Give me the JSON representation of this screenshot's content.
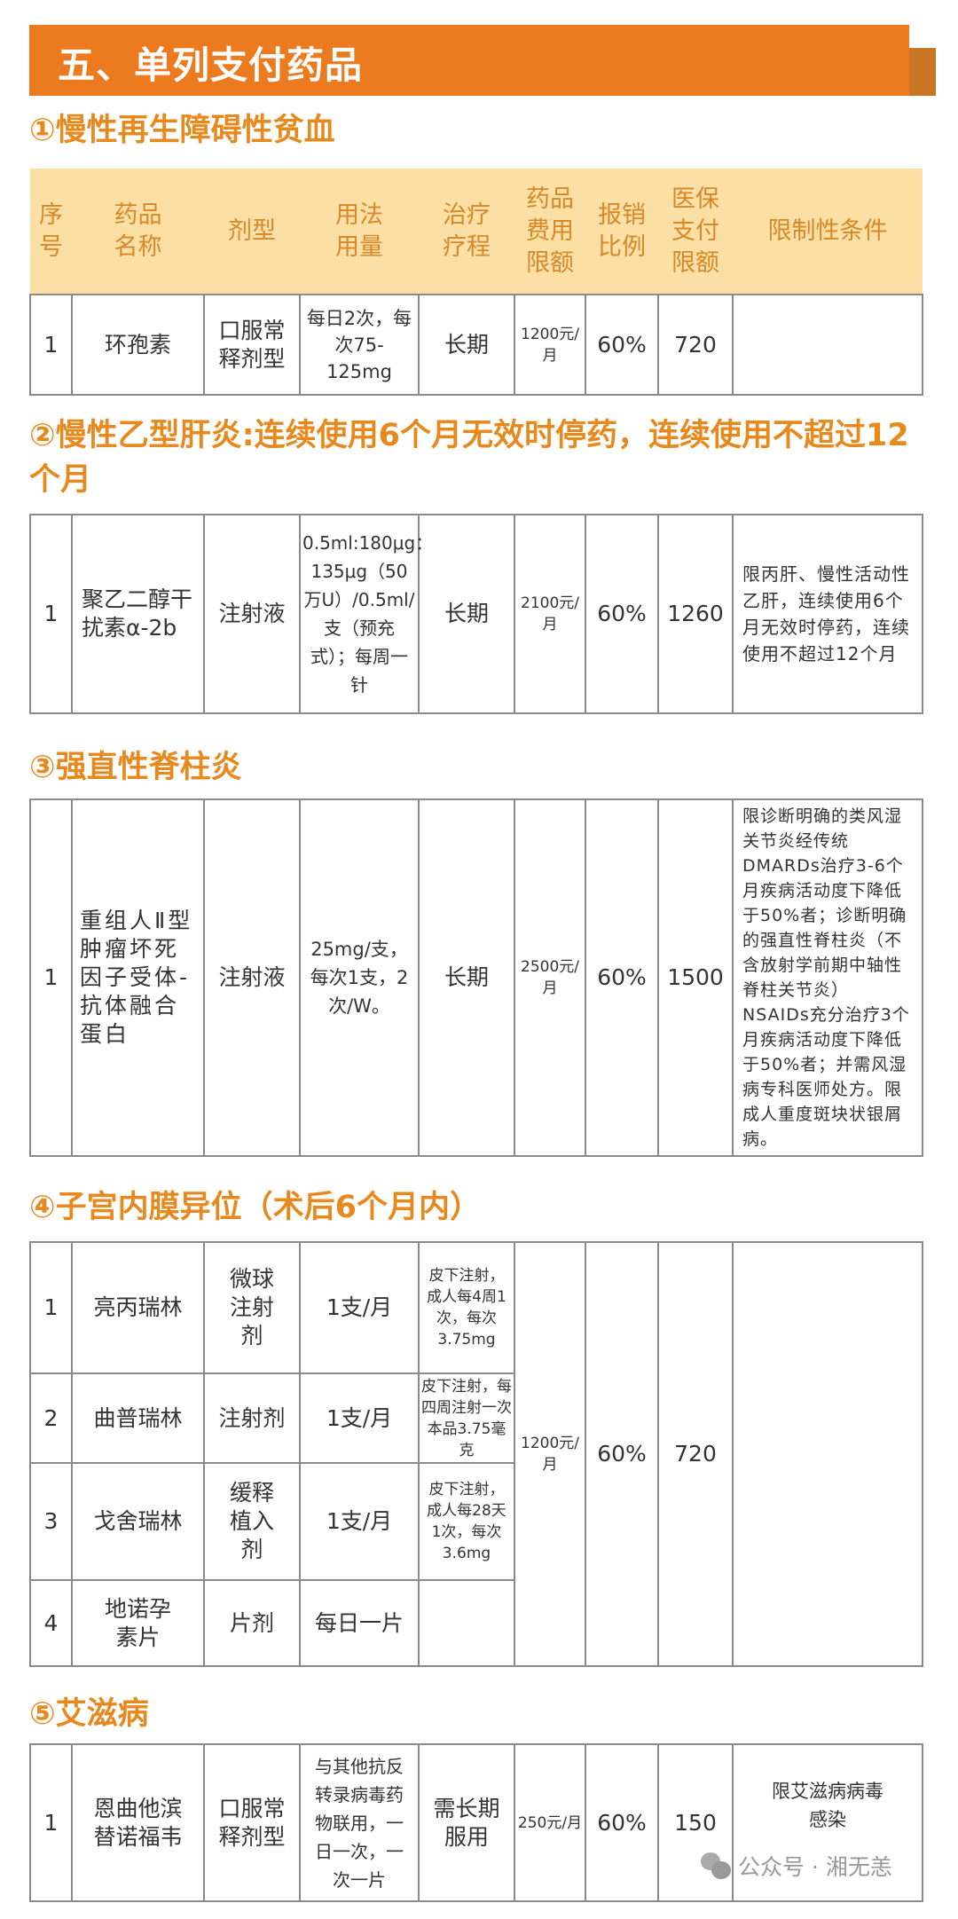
{
  "title": "五、单列支付药品",
  "headers": [
    "序号",
    "药品名称",
    "剂型",
    "用法用量",
    "治疗疗程",
    "药品费用限额",
    "报销比例",
    "医保支付限额",
    "限制性条件"
  ],
  "sections": [
    {
      "heading": "①慢性再生障碍性贫血",
      "rows": [
        {
          "no": "1",
          "name": "环孢素",
          "form": "口服常释剂型",
          "usage": "每日2次，每次75-125mg",
          "course": "长期",
          "fee": "1200元/月",
          "ratio": "60%",
          "pay": "720",
          "cond": ""
        }
      ]
    },
    {
      "heading": "②慢性乙型肝炎:连续使用6个月无效时停药，连续使用不超过12个月",
      "rows": [
        {
          "no": "1",
          "name": "聚乙二醇干扰素α-2b",
          "form": "注射液",
          "usage": "0.5ml:180μg：135μg（50万U）/0.5ml/支（预充式）；每周一针",
          "course": "长期",
          "fee": "2100元/月",
          "ratio": "60%",
          "pay": "1260",
          "cond": "限丙肝、慢性活动性乙肝，连续使用6个月无效时停药，连续使用不超过12个月"
        }
      ]
    },
    {
      "heading": "③强直性脊柱炎",
      "rows": [
        {
          "no": "1",
          "name": "重组人Ⅱ型肿瘤坏死因子受体-抗体融合蛋白",
          "form": "注射液",
          "usage": "25mg/支，每次1支，2次/W。",
          "course": "长期",
          "fee": "2500元/月",
          "ratio": "60%",
          "pay": "1500",
          "cond": "限诊断明确的类风湿关节炎经传统DMARDs治疗3-6个月疾病活动度下降低于50%者；诊断明确的强直性脊柱炎（不含放射学前期中轴性脊柱关节炎）NSAIDs充分治疗3个月疾病活动度下降低于50%者；并需风湿病专科医师处方。限成人重度斑块状银屑病。"
        }
      ]
    },
    {
      "heading": "④子宫内膜异位（术后6个月内）",
      "fee": "1200元/月",
      "ratio": "60%",
      "pay": "720",
      "cond": "",
      "rows": [
        {
          "no": "1",
          "name": "亮丙瑞林",
          "form": "微球注射剂",
          "usage": "1支/月",
          "detail": "皮下注射，成人每4周1次，每次3.75mg"
        },
        {
          "no": "2",
          "name": "曲普瑞林",
          "form": "注射剂",
          "usage": "1支/月",
          "detail": "皮下注射，每四周注射一次本品3.75毫克"
        },
        {
          "no": "3",
          "name": "戈舍瑞林",
          "form": "缓释植入剂",
          "usage": "1支/月",
          "detail": "皮下注射，成人每28天1次，每次3.6mg"
        },
        {
          "no": "4",
          "name": "地诺孕素片",
          "form": "片剂",
          "usage": "每日一片",
          "detail": ""
        }
      ]
    },
    {
      "heading": "⑤艾滋病",
      "rows": [
        {
          "no": "1",
          "name": "恩曲他滨替诺福韦",
          "form": "口服常释剂型",
          "usage": "与其他抗反转录病毒药物联用，一日一次，一次一片",
          "course": "需长期服用",
          "fee": "250元/月",
          "ratio": "60%",
          "pay": "150",
          "cond": "限艾滋病病毒感染"
        }
      ]
    }
  ],
  "watermark": {
    "icon": "wechat-icon",
    "text": "公众号 · 湘无恙"
  },
  "colors": {
    "banner": "#EC7B20",
    "heading": "#E8891E",
    "header_bg": "#FCDFA5"
  }
}
